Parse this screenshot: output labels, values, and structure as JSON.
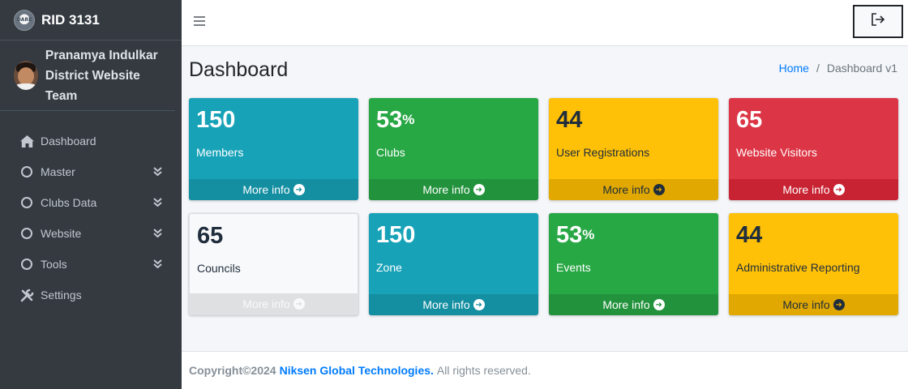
{
  "brand": {
    "name": "RID 3131",
    "logo_text": "DARE"
  },
  "user": {
    "name_line1": "Pranamya Indulkar",
    "name_line2": "District Website Team"
  },
  "sidebar": {
    "items": [
      {
        "label": "Dashboard",
        "icon": "home-icon"
      },
      {
        "label": "Master",
        "icon": "circle-icon",
        "expandable": true
      },
      {
        "label": "Clubs Data",
        "icon": "circle-icon",
        "expandable": true
      },
      {
        "label": "Website",
        "icon": "circle-icon",
        "expandable": true
      },
      {
        "label": "Tools",
        "icon": "circle-icon",
        "expandable": true
      },
      {
        "label": "Settings",
        "icon": "tools-icon"
      }
    ]
  },
  "header": {
    "title": "Dashboard",
    "breadcrumb_home": "Home",
    "breadcrumb_sep": "/",
    "breadcrumb_current": "Dashboard v1"
  },
  "boxes": [
    {
      "value": "150",
      "suffix": "",
      "label": "Members",
      "more": "More info",
      "color": "#17a2b8"
    },
    {
      "value": "53",
      "suffix": "%",
      "label": "Clubs",
      "more": "More info",
      "color": "#28a745"
    },
    {
      "value": "44",
      "suffix": "",
      "label": "User Registrations",
      "more": "More info",
      "color": "#ffc107"
    },
    {
      "value": "65",
      "suffix": "",
      "label": "Website Visitors",
      "more": "More info",
      "color": "#dc3545"
    },
    {
      "value": "65",
      "suffix": "",
      "label": "Councils",
      "more": "More info",
      "color": "#f8f9fa"
    },
    {
      "value": "150",
      "suffix": "",
      "label": "Zone",
      "more": "More info",
      "color": "#17a2b8"
    },
    {
      "value": "53",
      "suffix": "%",
      "label": "Events",
      "more": "More info",
      "color": "#28a745"
    },
    {
      "value": "44",
      "suffix": "",
      "label": "Administrative Reporting",
      "more": "More info",
      "color": "#ffc107"
    }
  ],
  "footer": {
    "copyright": "Copyright©2024",
    "company": "Niksen Global Technologies.",
    "rest": "All rights reserved."
  }
}
